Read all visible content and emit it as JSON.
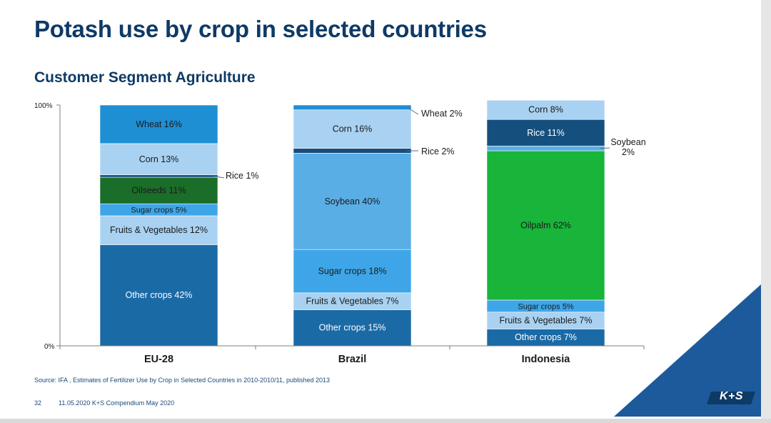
{
  "header": {
    "title": "Potash use by crop in selected countries",
    "subtitle": "Customer Segment Agriculture"
  },
  "chart_data": {
    "type": "bar",
    "stacked": true,
    "ylim": [
      0,
      100
    ],
    "y_ticks": [
      "0%",
      "100%"
    ],
    "categories": [
      "EU-28",
      "Brazil",
      "Indonesia"
    ],
    "stacks": [
      {
        "category": "EU-28",
        "segments": [
          {
            "name": "Other crops",
            "value": 42,
            "label": "Other crops 42%",
            "color": "#1a6aa6",
            "label_color": "#ffffff"
          },
          {
            "name": "Fruits & Vegetables",
            "value": 12,
            "label": "Fruits & Vegetables 12%",
            "color": "#a9d2f2",
            "label_color": "#1a1a1a"
          },
          {
            "name": "Sugar crops",
            "value": 5,
            "label": "Sugar crops 5%",
            "color": "#3ea6e8",
            "label_color": "#1a1a1a"
          },
          {
            "name": "Oilseeds",
            "value": 11,
            "label": "Oilseeds 11%",
            "color": "#1a6e2a",
            "label_color": "#1a1a1a"
          },
          {
            "name": "Rice",
            "value": 1,
            "label": "Rice 1%",
            "color": "#184e7c",
            "label_color": "#1a1a1a",
            "external": true
          },
          {
            "name": "Corn",
            "value": 13,
            "label": "Corn 13%",
            "color": "#a9d2f2",
            "label_color": "#1a1a1a"
          },
          {
            "name": "Wheat",
            "value": 16,
            "label": "Wheat 16%",
            "color": "#1f8fd4",
            "label_color": "#1a1a1a"
          }
        ]
      },
      {
        "category": "Brazil",
        "segments": [
          {
            "name": "Other crops",
            "value": 15,
            "label": "Other crops 15%",
            "color": "#1a6aa6",
            "label_color": "#ffffff"
          },
          {
            "name": "Fruits & Vegetables",
            "value": 7,
            "label": "Fruits & Vegetables 7%",
            "color": "#a9d2f2",
            "label_color": "#1a1a1a"
          },
          {
            "name": "Sugar crops",
            "value": 18,
            "label": "Sugar crops 18%",
            "color": "#3ea6e8",
            "label_color": "#1a1a1a"
          },
          {
            "name": "Soybean",
            "value": 40,
            "label": "Soybean 40%",
            "color": "#5aaee6",
            "label_color": "#1a1a1a"
          },
          {
            "name": "Rice",
            "value": 2,
            "label": "Rice 2%",
            "color": "#184e7c",
            "label_color": "#1a1a1a",
            "external": true
          },
          {
            "name": "Corn",
            "value": 16,
            "label": "Corn 16%",
            "color": "#a9d2f2",
            "label_color": "#1a1a1a"
          },
          {
            "name": "Wheat",
            "value": 2,
            "label": "Wheat 2%",
            "color": "#1f8fd4",
            "label_color": "#1a1a1a",
            "external": true
          }
        ]
      },
      {
        "category": "Indonesia",
        "segments": [
          {
            "name": "Other crops",
            "value": 7,
            "label": "Other crops 7%",
            "color": "#1a6aa6",
            "label_color": "#ffffff"
          },
          {
            "name": "Fruits & Vegetables",
            "value": 7,
            "label": "Fruits & Vegetables 7%",
            "color": "#a9d2f2",
            "label_color": "#1a1a1a"
          },
          {
            "name": "Sugar crops",
            "value": 5,
            "label": "Sugar crops 5%",
            "color": "#3ea6e8",
            "label_color": "#1a1a1a"
          },
          {
            "name": "Oilpalm",
            "value": 62,
            "label": "Oilpalm 62%",
            "color": "#18b53a",
            "label_color": "#1a1a1a"
          },
          {
            "name": "Soybean",
            "value": 2,
            "label": "Soybean 2%",
            "label_lines": [
              "Soybean",
              "2%"
            ],
            "color": "#5aaee6",
            "label_color": "#1a1a1a",
            "external": true
          },
          {
            "name": "Rice",
            "value": 11,
            "label": "Rice 11%",
            "color": "#154f7e",
            "label_color": "#ffffff"
          },
          {
            "name": "Corn",
            "value": 8,
            "label": "Corn 8%",
            "color": "#a9d2f2",
            "label_color": "#1a1a1a"
          }
        ]
      }
    ]
  },
  "source": "Source: IFA , Estimates of Fertilizer Use by Crop in Selected Countries in 2010-2010/11, published 2013",
  "footer": {
    "page": "32",
    "text": "11.05.2020 K+S Compendium May 2020"
  },
  "brand": {
    "logo_text": "K+S",
    "primary_color": "#1c5a9c"
  }
}
